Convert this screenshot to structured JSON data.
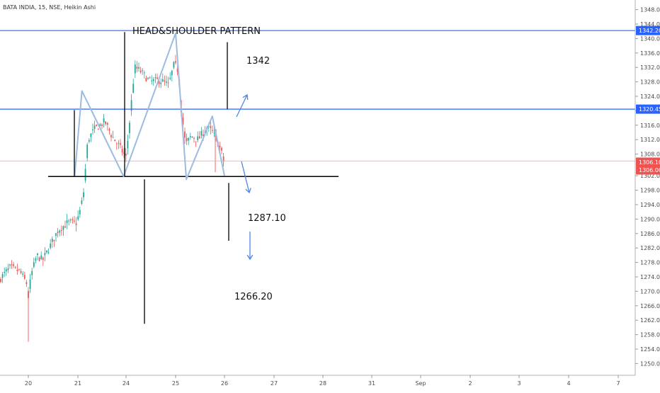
{
  "chart_data": {
    "type": "candlestick",
    "title": "BATA INDIA, 15, NSE, Heikin Ashi",
    "ylim": [
      1249,
      1350
    ],
    "y_ticks": [
      "1348.00",
      "1344.00",
      "1340.00",
      "1336.00",
      "1332.00",
      "1328.00",
      "1324.00",
      "1320.00",
      "1316.00",
      "1312.00",
      "1308.00",
      "1302.00",
      "1298.00",
      "1294.00",
      "1290.00",
      "1286.00",
      "1282.00",
      "1278.00",
      "1274.00",
      "1270.00",
      "1266.00",
      "1262.00",
      "1258.00",
      "1254.00",
      "1250.00"
    ],
    "x_ticks": [
      "20",
      "21",
      "24",
      "25",
      "26",
      "27",
      "28",
      "31",
      "Sep",
      "2",
      "3",
      "4",
      "7"
    ],
    "colors": {
      "up": "#26a69a",
      "down": "#ef5350",
      "level_line": "#2962ff",
      "pattern": "#9bbbe0",
      "neckline": "#000000",
      "current_price": "#ef5350"
    },
    "levels": [
      {
        "label": "1342.20",
        "value": 1342.2
      },
      {
        "label": "1320.45",
        "value": 1320.45
      }
    ],
    "current_price": {
      "label": "1306.10",
      "value": 1306.1
    },
    "last_close": {
      "label": "1306.00",
      "value": 1306.0
    },
    "neckline": 1301.8,
    "pattern_points": [
      {
        "day": 20.97,
        "price": 1301.9
      },
      {
        "day": 21.25,
        "price": 1325.5
      },
      {
        "day": 23.85,
        "price": 1301.8
      },
      {
        "day": 25.0,
        "price": 1341.5
      },
      {
        "day": 25.22,
        "price": 1301.0
      },
      {
        "day": 25.75,
        "price": 1318.5
      },
      {
        "day": 26.0,
        "price": 1302.0
      }
    ],
    "annotations": [
      {
        "text": "HEAD&SHOULDER PATTERN"
      },
      {
        "text": "1342"
      },
      {
        "text": "1287.10"
      },
      {
        "text": "1266.20"
      }
    ]
  }
}
